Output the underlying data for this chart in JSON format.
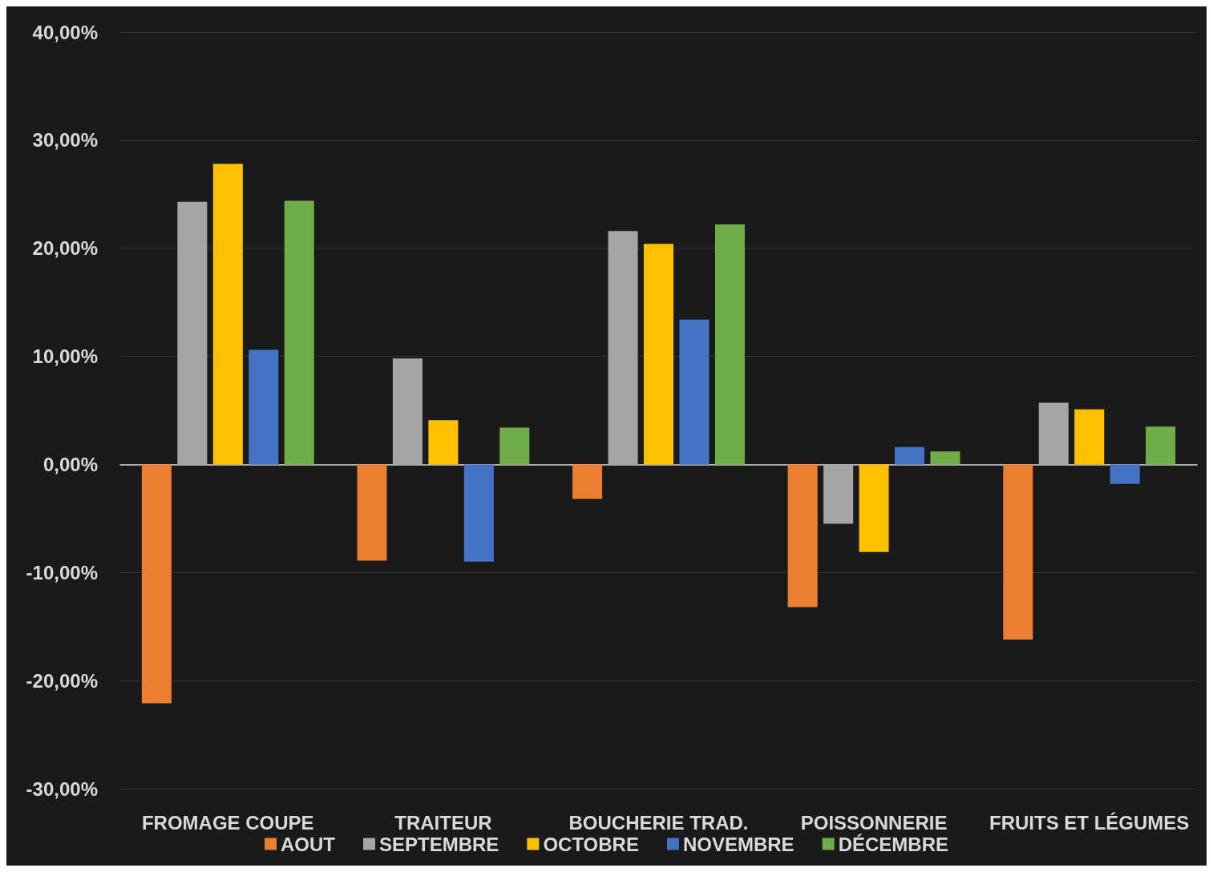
{
  "chart_data": {
    "type": "bar",
    "categories": [
      "FROMAGE COUPE",
      "TRAITEUR",
      "BOUCHERIE TRAD.",
      "POISSONNERIE",
      "FRUITS ET LÉGUMES"
    ],
    "series": [
      {
        "name": "AOUT",
        "color": "#ed7d31",
        "values": [
          -22.1,
          -8.9,
          -3.2,
          -13.2,
          -16.2
        ]
      },
      {
        "name": "SEPTEMBRE",
        "color": "#a5a5a5",
        "values": [
          24.3,
          9.8,
          21.6,
          -5.5,
          5.7
        ]
      },
      {
        "name": "OCTOBRE",
        "color": "#ffc000",
        "values": [
          27.8,
          4.1,
          20.4,
          -8.1,
          5.1
        ]
      },
      {
        "name": "NOVEMBRE",
        "color": "#4472c4",
        "values": [
          10.6,
          -9.0,
          13.4,
          1.6,
          -1.8
        ]
      },
      {
        "name": "DÉCEMBRE",
        "color": "#70ad47",
        "values": [
          24.4,
          3.4,
          22.2,
          1.2,
          3.5
        ]
      }
    ],
    "ylim": [
      -30,
      40
    ],
    "yticks": [
      {
        "value": -30,
        "label": "-30,00%"
      },
      {
        "value": -20,
        "label": "-20,00%"
      },
      {
        "value": -10,
        "label": "-10,00%"
      },
      {
        "value": 0,
        "label": "0,00%"
      },
      {
        "value": 10,
        "label": "10,00%"
      },
      {
        "value": 20,
        "label": "20,00%"
      },
      {
        "value": 30,
        "label": "30,00%"
      },
      {
        "value": 40,
        "label": "40,00%"
      }
    ],
    "grid": "y",
    "legend": "bottom"
  }
}
